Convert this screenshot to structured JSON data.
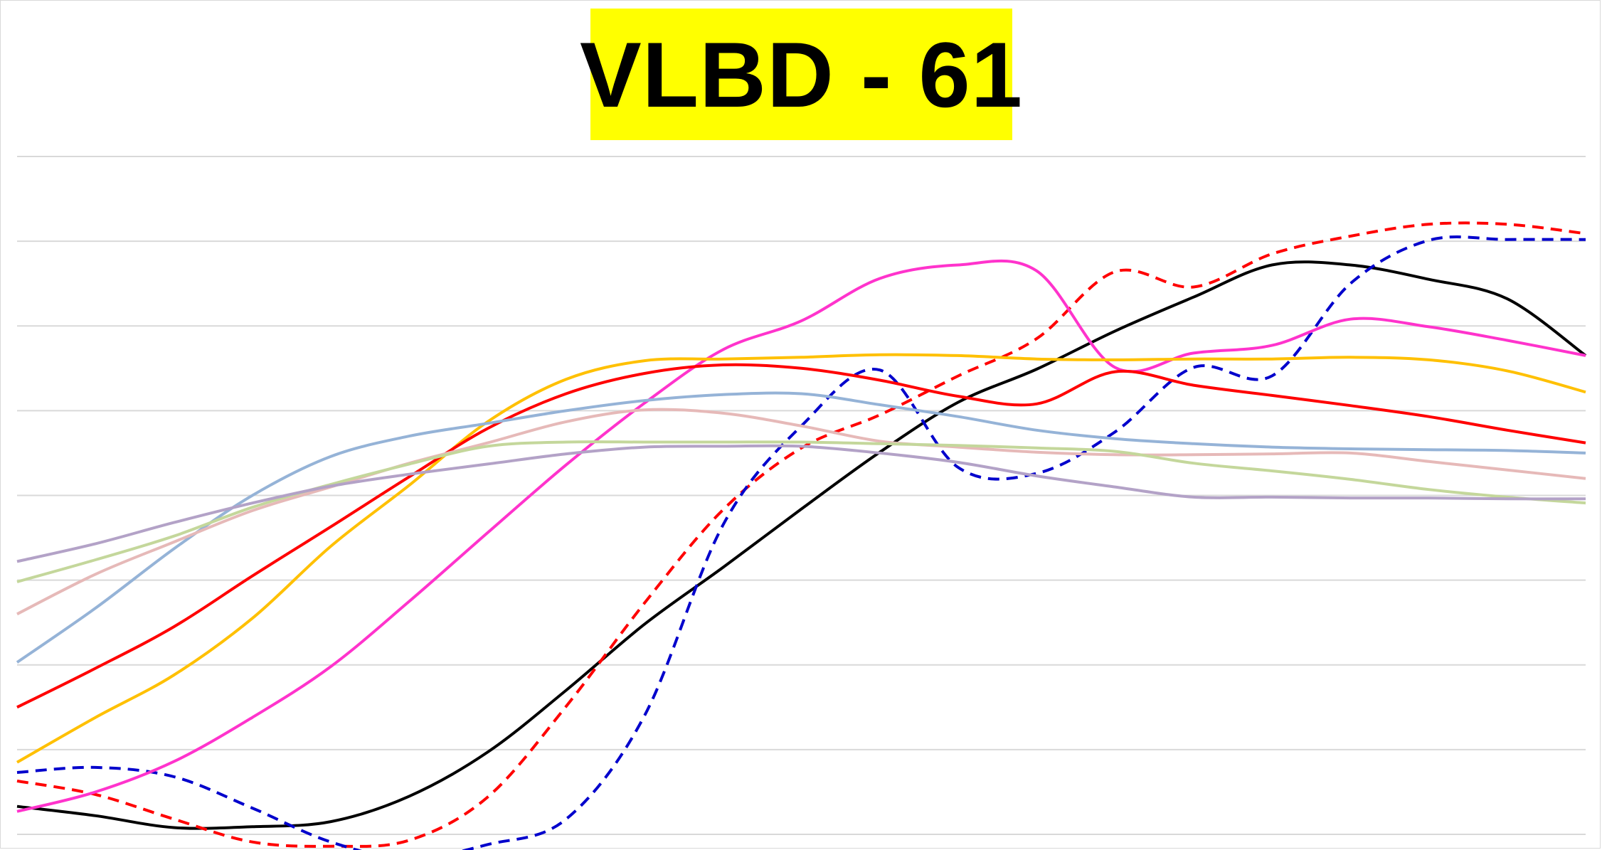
{
  "chart_data": {
    "type": "line",
    "title": "VLBD - 61",
    "title_background": "#ffff00",
    "xlabel": "",
    "ylabel": "",
    "grid": true,
    "legend": "none",
    "axis_labels_shown": false,
    "ylim": [
      0,
      8
    ],
    "xlim": [
      0,
      100
    ],
    "x": [
      0,
      5,
      10,
      15,
      20,
      25,
      30,
      35,
      40,
      45,
      50,
      55,
      60,
      65,
      70,
      75,
      80,
      85,
      90,
      95,
      100
    ],
    "series": [
      {
        "color": "#000000",
        "dash": "solid",
        "values": [
          0.33,
          0.22,
          0.08,
          0.09,
          0.15,
          0.45,
          0.97,
          1.7,
          2.48,
          3.15,
          3.84,
          4.51,
          5.1,
          5.49,
          5.94,
          6.34,
          6.72,
          6.72,
          6.55,
          6.32,
          5.65
        ]
      },
      {
        "color": "#ff0000",
        "dash": "dash",
        "values": [
          0.63,
          0.47,
          0.18,
          -0.09,
          -0.14,
          -0.07,
          0.44,
          1.51,
          2.73,
          3.83,
          4.56,
          4.95,
          5.41,
          5.85,
          6.64,
          6.46,
          6.85,
          7.06,
          7.2,
          7.2,
          7.09
        ]
      },
      {
        "color": "#0000cc",
        "dash": "dash",
        "values": [
          0.73,
          0.79,
          0.68,
          0.31,
          -0.09,
          -0.29,
          -0.12,
          0.18,
          1.4,
          3.65,
          4.82,
          5.48,
          4.33,
          4.26,
          4.75,
          5.51,
          5.41,
          6.5,
          7.01,
          7.02,
          7.02
        ]
      },
      {
        "color": "#ff33cc",
        "dash": "solid",
        "values": [
          0.27,
          0.5,
          0.86,
          1.38,
          1.98,
          2.75,
          3.56,
          4.36,
          5.09,
          5.72,
          6.06,
          6.56,
          6.72,
          6.65,
          5.51,
          5.68,
          5.77,
          6.08,
          5.99,
          5.83,
          5.65
        ]
      },
      {
        "color": "#ffc000",
        "dash": "solid",
        "values": [
          0.85,
          1.38,
          1.88,
          2.55,
          3.4,
          4.12,
          4.87,
          5.37,
          5.59,
          5.61,
          5.63,
          5.66,
          5.65,
          5.61,
          5.6,
          5.61,
          5.61,
          5.63,
          5.6,
          5.47,
          5.22
        ]
      },
      {
        "color": "#ff0000",
        "dash": "solid",
        "values": [
          1.5,
          1.96,
          2.45,
          3.05,
          3.63,
          4.22,
          4.79,
          5.2,
          5.44,
          5.54,
          5.5,
          5.36,
          5.17,
          5.08,
          5.46,
          5.3,
          5.18,
          5.06,
          4.93,
          4.77,
          4.62
        ]
      },
      {
        "color": "#95b3d7",
        "dash": "solid",
        "values": [
          2.03,
          2.67,
          3.37,
          4.0,
          4.46,
          4.7,
          4.85,
          5.0,
          5.12,
          5.19,
          5.2,
          5.07,
          4.93,
          4.77,
          4.67,
          4.61,
          4.57,
          4.55,
          4.54,
          4.53,
          4.5
        ]
      },
      {
        "color": "#e6b9b8",
        "dash": "solid",
        "values": [
          2.6,
          3.07,
          3.45,
          3.82,
          4.1,
          4.38,
          4.62,
          4.87,
          5.01,
          4.97,
          4.82,
          4.64,
          4.57,
          4.51,
          4.48,
          4.48,
          4.49,
          4.5,
          4.4,
          4.3,
          4.2
        ]
      },
      {
        "color": "#c4d79b",
        "dash": "solid",
        "values": [
          2.98,
          3.24,
          3.52,
          3.86,
          4.13,
          4.37,
          4.58,
          4.63,
          4.63,
          4.63,
          4.63,
          4.61,
          4.59,
          4.56,
          4.52,
          4.38,
          4.29,
          4.19,
          4.07,
          3.98,
          3.91
        ]
      },
      {
        "color": "#b3a2c7",
        "dash": "solid",
        "values": [
          3.22,
          3.43,
          3.68,
          3.91,
          4.11,
          4.25,
          4.37,
          4.49,
          4.57,
          4.58,
          4.58,
          4.5,
          4.39,
          4.23,
          4.1,
          3.98,
          3.98,
          3.97,
          3.97,
          3.96,
          3.96
        ]
      }
    ]
  }
}
